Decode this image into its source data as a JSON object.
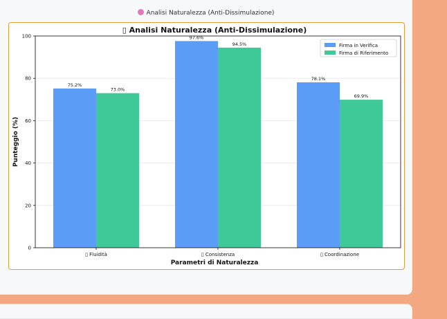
{
  "panel": {
    "title": "Analisi Naturalezza (Anti-Dissimulazione)",
    "icon": "brain-icon"
  },
  "chart_data": {
    "type": "bar",
    "title": "▯ Analisi Naturalezza (Anti-Dissimulazione)",
    "xlabel": "Parametri di Naturalezza",
    "ylabel": "Punteggio (%)",
    "categories": [
      "▯ Fluidità",
      "▯ Consistenza",
      "▯ Coordinazione"
    ],
    "series": [
      {
        "name": "Firma in Verifica",
        "values": [
          75.2,
          97.6,
          78.1
        ],
        "labels": [
          "75.2%",
          "97.6%",
          "78.1%"
        ],
        "color": "#5b9cf6"
      },
      {
        "name": "Firma di Riferimento",
        "values": [
          73.0,
          94.5,
          69.9
        ],
        "labels": [
          "73.0%",
          "94.5%",
          "69.9%"
        ],
        "color": "#3ec996"
      }
    ],
    "ylim": [
      0,
      100
    ],
    "yticks": [
      0,
      20,
      40,
      60,
      80,
      100
    ],
    "grid": true,
    "legend": "top-right"
  }
}
